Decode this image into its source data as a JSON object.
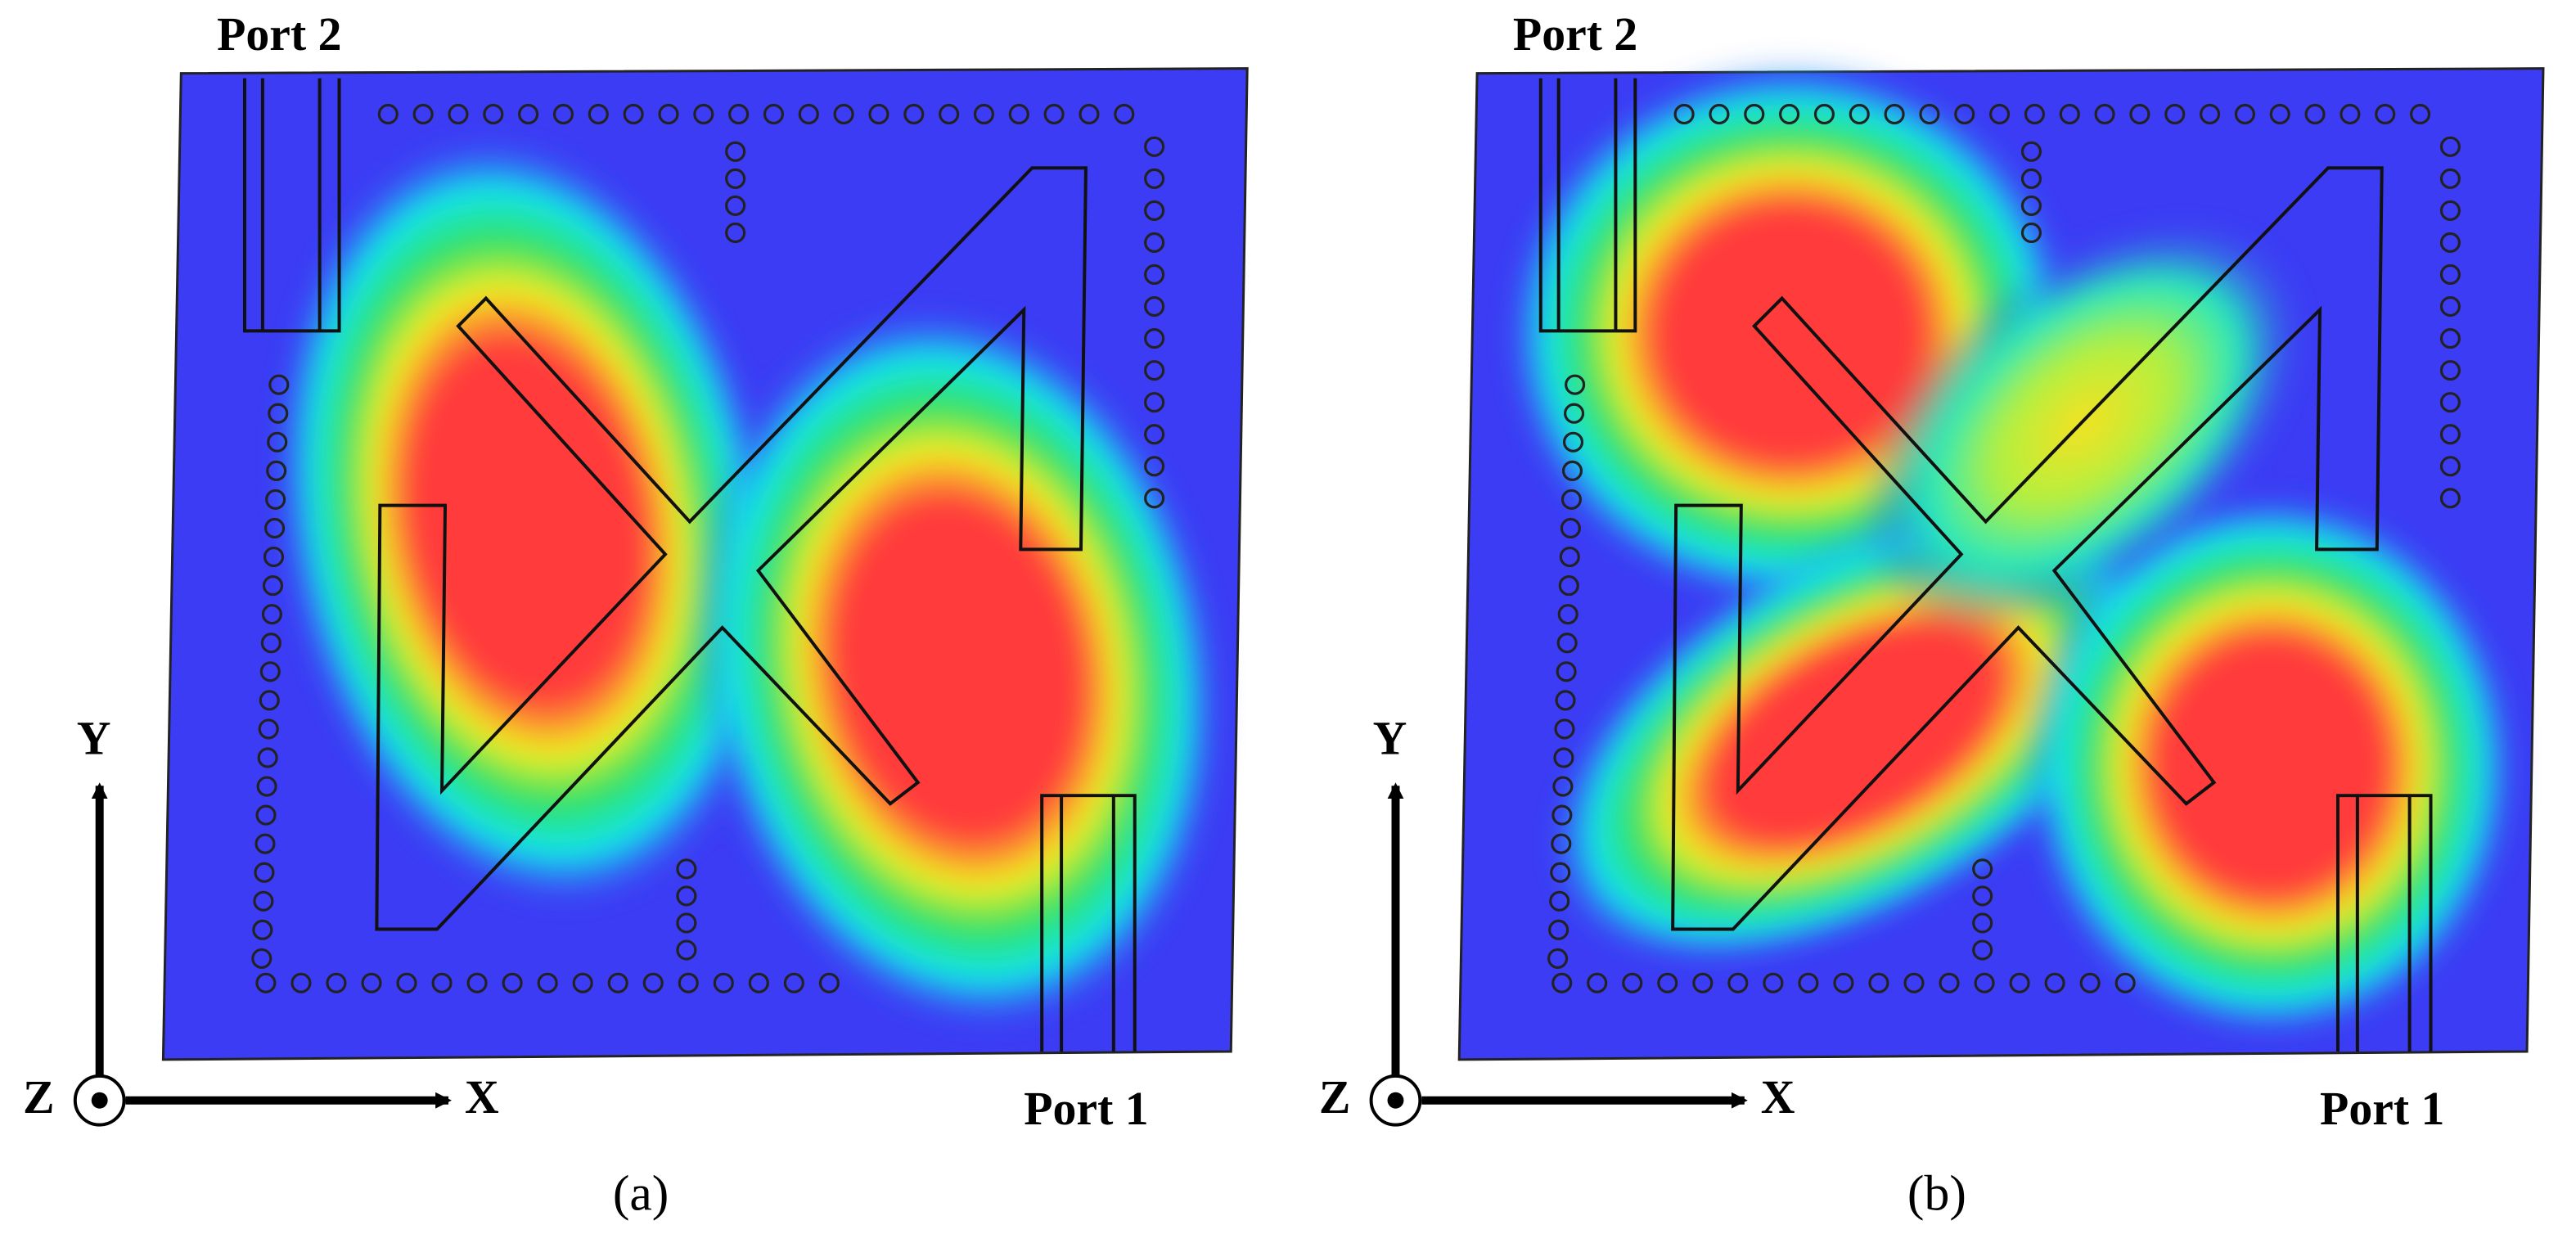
{
  "panels": [
    {
      "caption": "(a)",
      "port_top": "Port 2",
      "port_bottom": "Port 1",
      "axis_x": "X",
      "axis_y": "Y",
      "axis_z": "Z"
    },
    {
      "caption": "(b)",
      "port_top": "Port 2",
      "port_bottom": "Port 1",
      "axis_x": "X",
      "axis_y": "Y",
      "axis_z": "Z"
    }
  ]
}
